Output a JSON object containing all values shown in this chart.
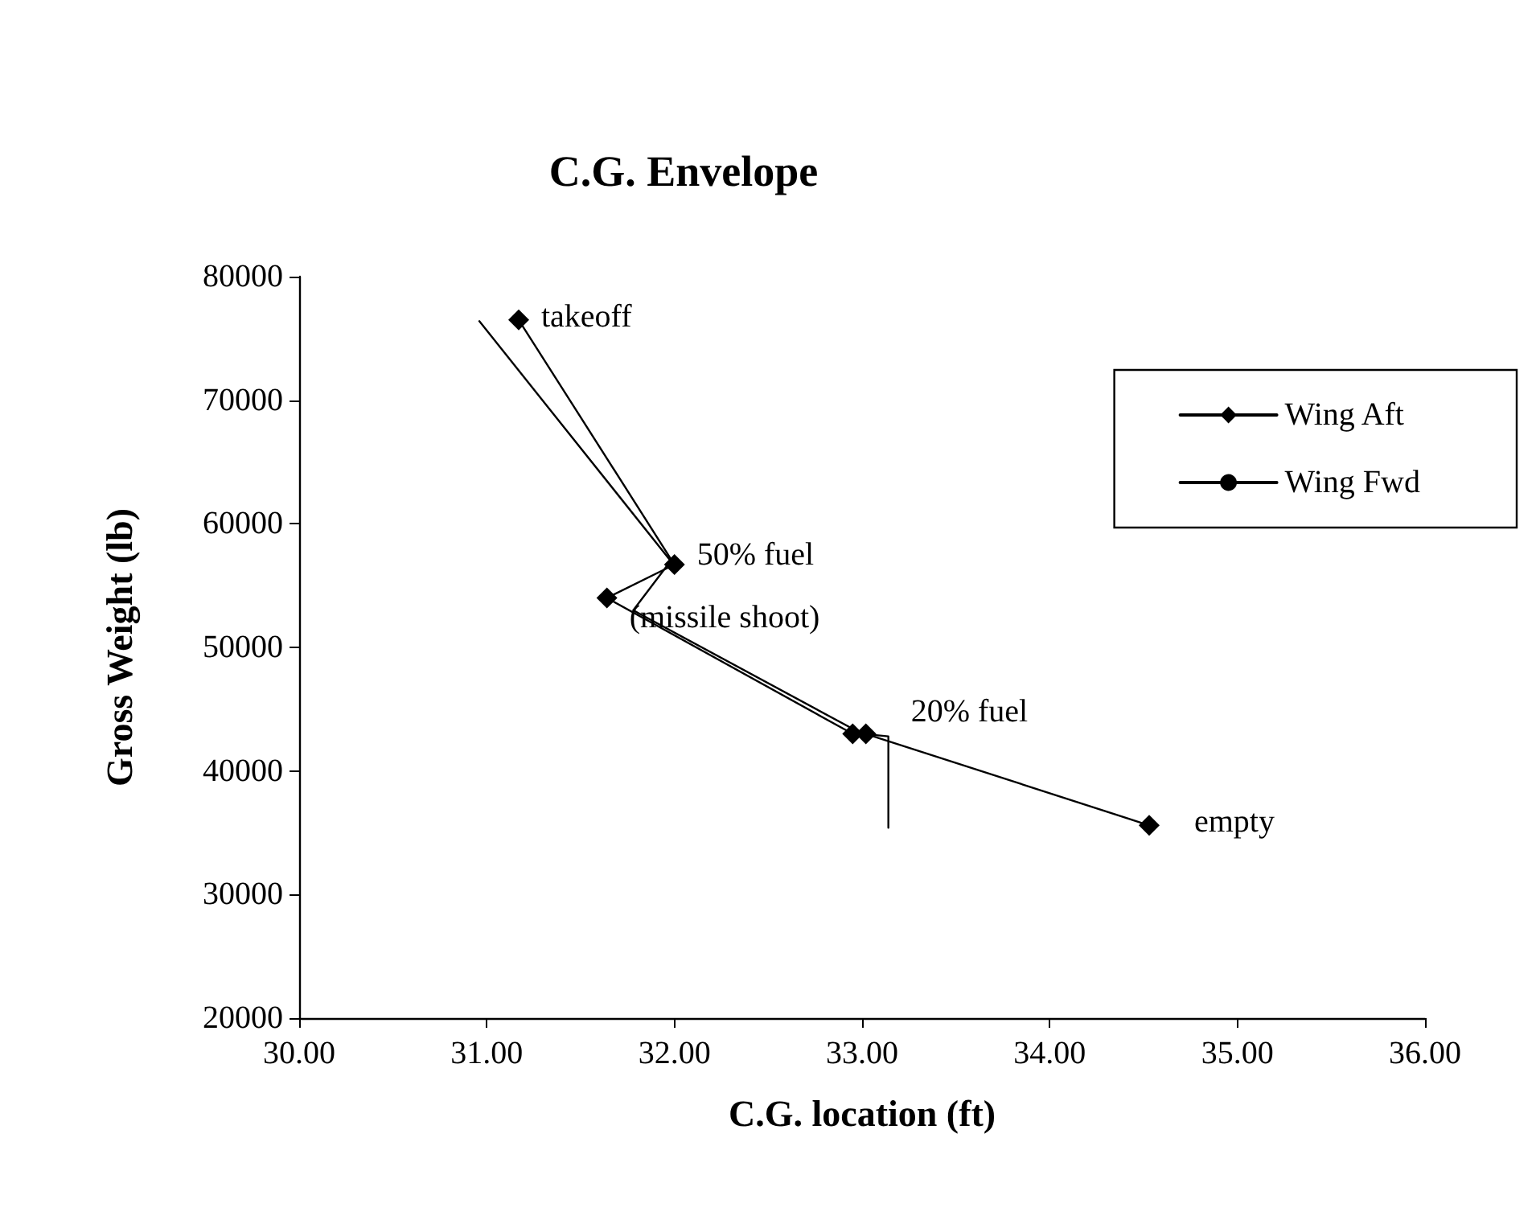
{
  "chart_data": {
    "type": "line",
    "title": "C.G. Envelope",
    "xlabel": "C.G. location (ft)",
    "ylabel": "Gross Weight (lb)",
    "series": [
      {
        "name": "Wing Aft",
        "color": "#000000",
        "marker": "diamond",
        "x": [
          31.17,
          32.0,
          31.64,
          32.95,
          33.02,
          34.53
        ],
        "values": [
          76500,
          56700,
          54000,
          43000,
          43000,
          35600
        ]
      },
      {
        "name": "Wing Fwd",
        "color": "#000000",
        "marker": "none",
        "x": [
          30.96,
          31.98,
          31.78,
          33.0,
          33.14,
          33.14
        ],
        "values": [
          76400,
          57000,
          53000,
          43000,
          42800,
          35400
        ]
      }
    ],
    "xlim": [
      30,
      36
    ],
    "ylim": [
      20000,
      80000
    ],
    "xticks": [
      {
        "value": 30,
        "label": "30.00"
      },
      {
        "value": 31,
        "label": "31.00"
      },
      {
        "value": 32,
        "label": "32.00"
      },
      {
        "value": 33,
        "label": "33.00"
      },
      {
        "value": 34,
        "label": "34.00"
      },
      {
        "value": 35,
        "label": "35.00"
      },
      {
        "value": 36,
        "label": "36.00"
      }
    ],
    "yticks": [
      20000,
      30000,
      40000,
      50000,
      60000,
      70000,
      80000
    ],
    "grid": false,
    "legend": "top right",
    "line_style": "solid",
    "annotations": [
      {
        "text": "takeoff",
        "x": 31.17,
        "y": 76500
      },
      {
        "text": "50% fuel",
        "x": 32.0,
        "y": 56700
      },
      {
        "text": "(missile shoot)",
        "x": 31.64,
        "y": 54000
      },
      {
        "text": "20% fuel",
        "x": 33.02,
        "y": 43500
      },
      {
        "text": "empty",
        "x": 34.53,
        "y": 35600
      }
    ]
  }
}
